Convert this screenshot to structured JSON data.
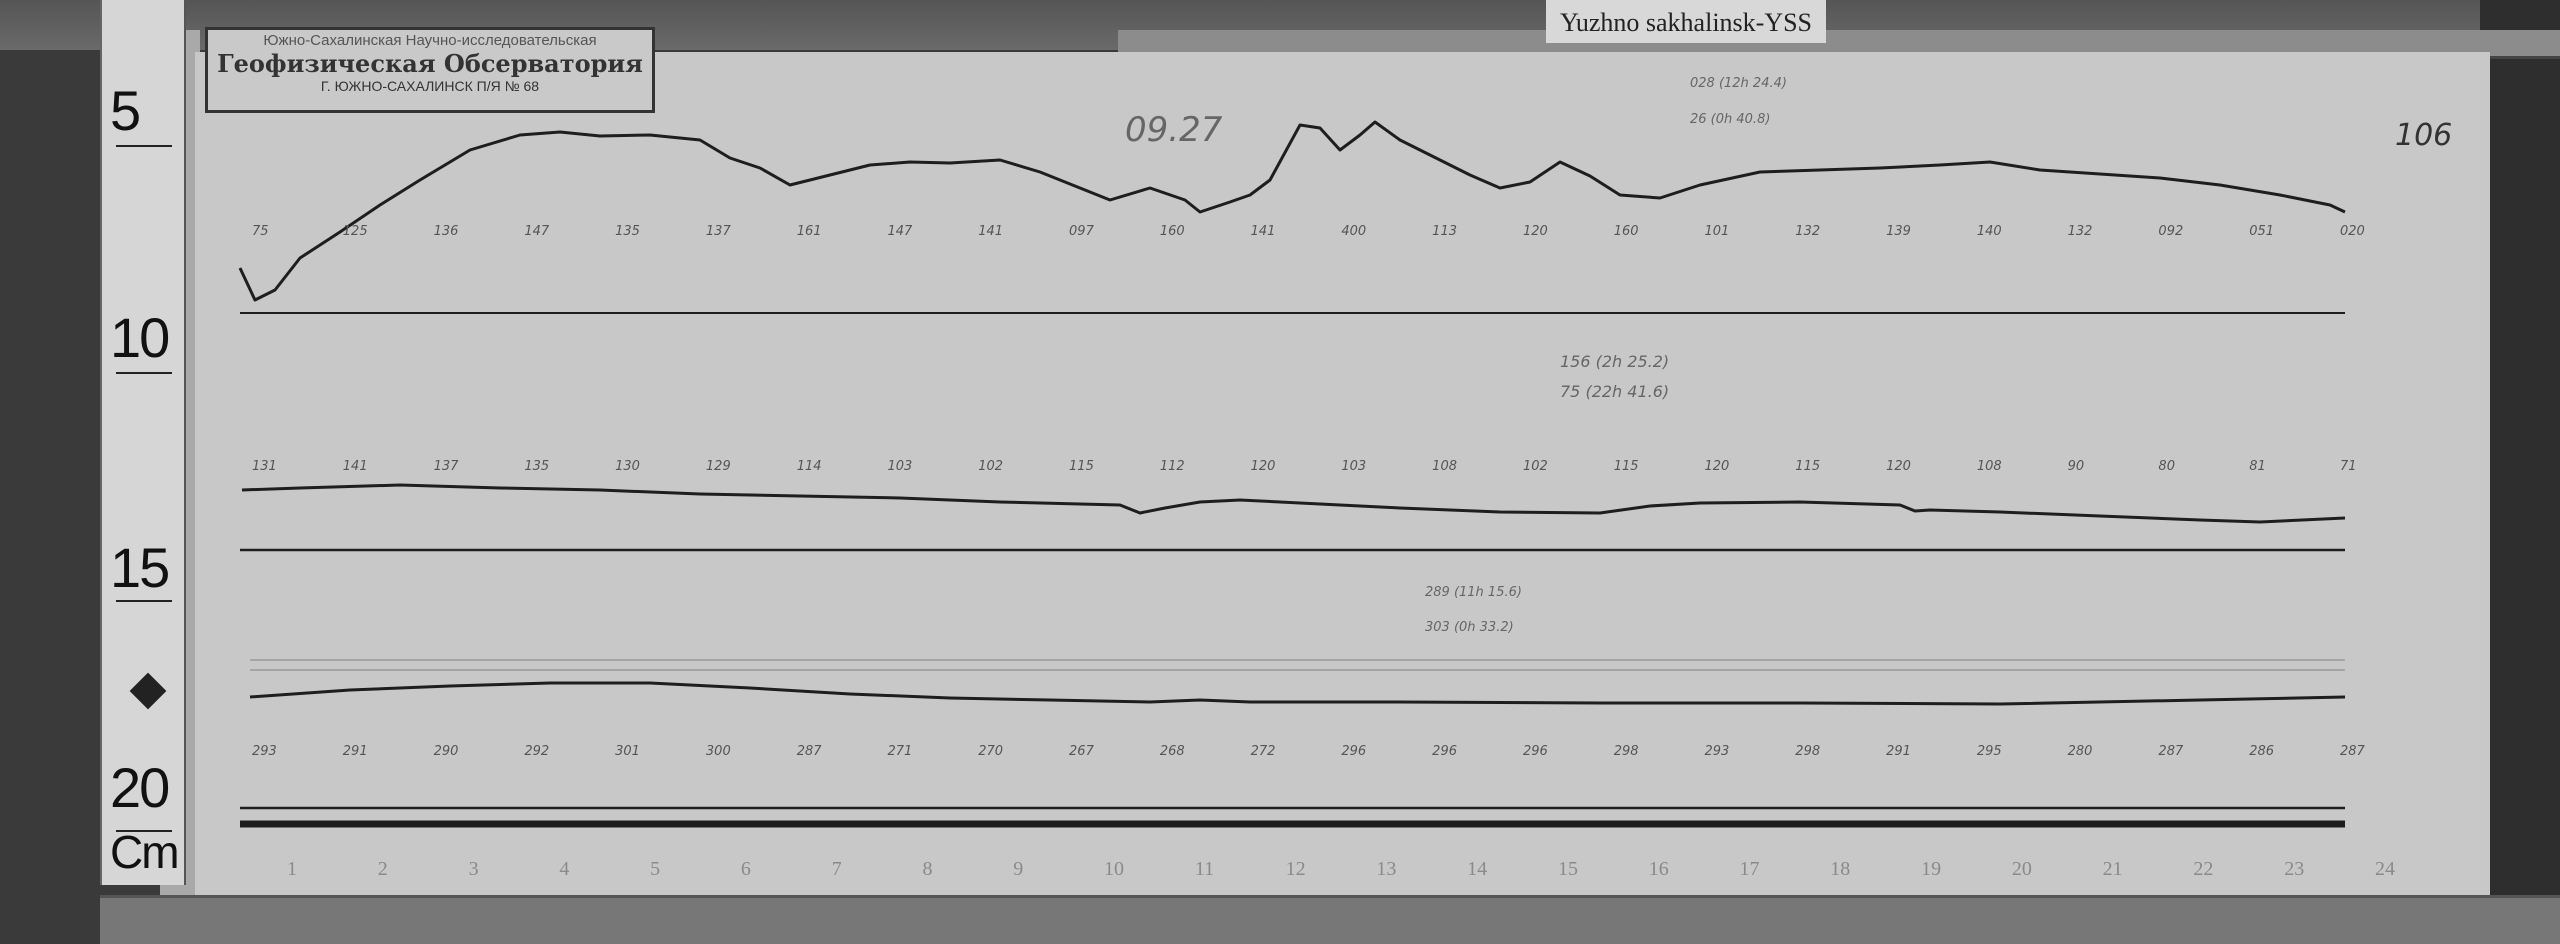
{
  "station_label": "Yuzhno sakhalinsk-YSS",
  "stamp": {
    "line1": "Южно-Сахалинская Научно-исследовательская",
    "line2": "Геофизическая Обсерватория",
    "line3": "Г. ЮЖНО-САХАЛИНСК П/Я № 68"
  },
  "ruler": {
    "marks": [
      "5",
      "10",
      "15",
      "20"
    ],
    "unit": "Cm"
  },
  "date_note": "09.27",
  "sheet_number": "106",
  "annotations": {
    "top_right": [
      "028 (12h 24.4)",
      "26 (0h 40.8)"
    ],
    "middle": [
      "156 (2h 25.2)",
      "75 (22h 41.6)"
    ],
    "lower": [
      "289 (11h 15.6)",
      "303 (0h 33.2)"
    ]
  },
  "trace_1_values": [
    "75",
    "125",
    "136",
    "147",
    "135",
    "137",
    "161",
    "147",
    "141",
    "097",
    "160",
    "141",
    "400",
    "113",
    "120",
    "160",
    "101",
    "132",
    "139",
    "140",
    "132",
    "092",
    "051",
    "020"
  ],
  "trace_2_values": [
    "131",
    "141",
    "137",
    "135",
    "130",
    "129",
    "114",
    "103",
    "102",
    "115",
    "112",
    "120",
    "103",
    "108",
    "102",
    "115",
    "120",
    "115",
    "120",
    "108",
    "90",
    "80",
    "81",
    "71"
  ],
  "trace_3_values": [
    "293",
    "291",
    "290",
    "292",
    "301",
    "300",
    "287",
    "271",
    "270",
    "267",
    "268",
    "272",
    "296",
    "296",
    "296",
    "298",
    "293",
    "298",
    "291",
    "295",
    "280",
    "287",
    "286",
    "287"
  ],
  "hours": [
    "1",
    "2",
    "3",
    "4",
    "5",
    "6",
    "7",
    "8",
    "9",
    "10",
    "11",
    "12",
    "13",
    "14",
    "15",
    "16",
    "17",
    "18",
    "19",
    "20",
    "21",
    "22",
    "23",
    "24"
  ],
  "colors": {
    "paper": "#c8c8c8",
    "trace": "#1e1e1e",
    "background": "#3a3a3a"
  }
}
